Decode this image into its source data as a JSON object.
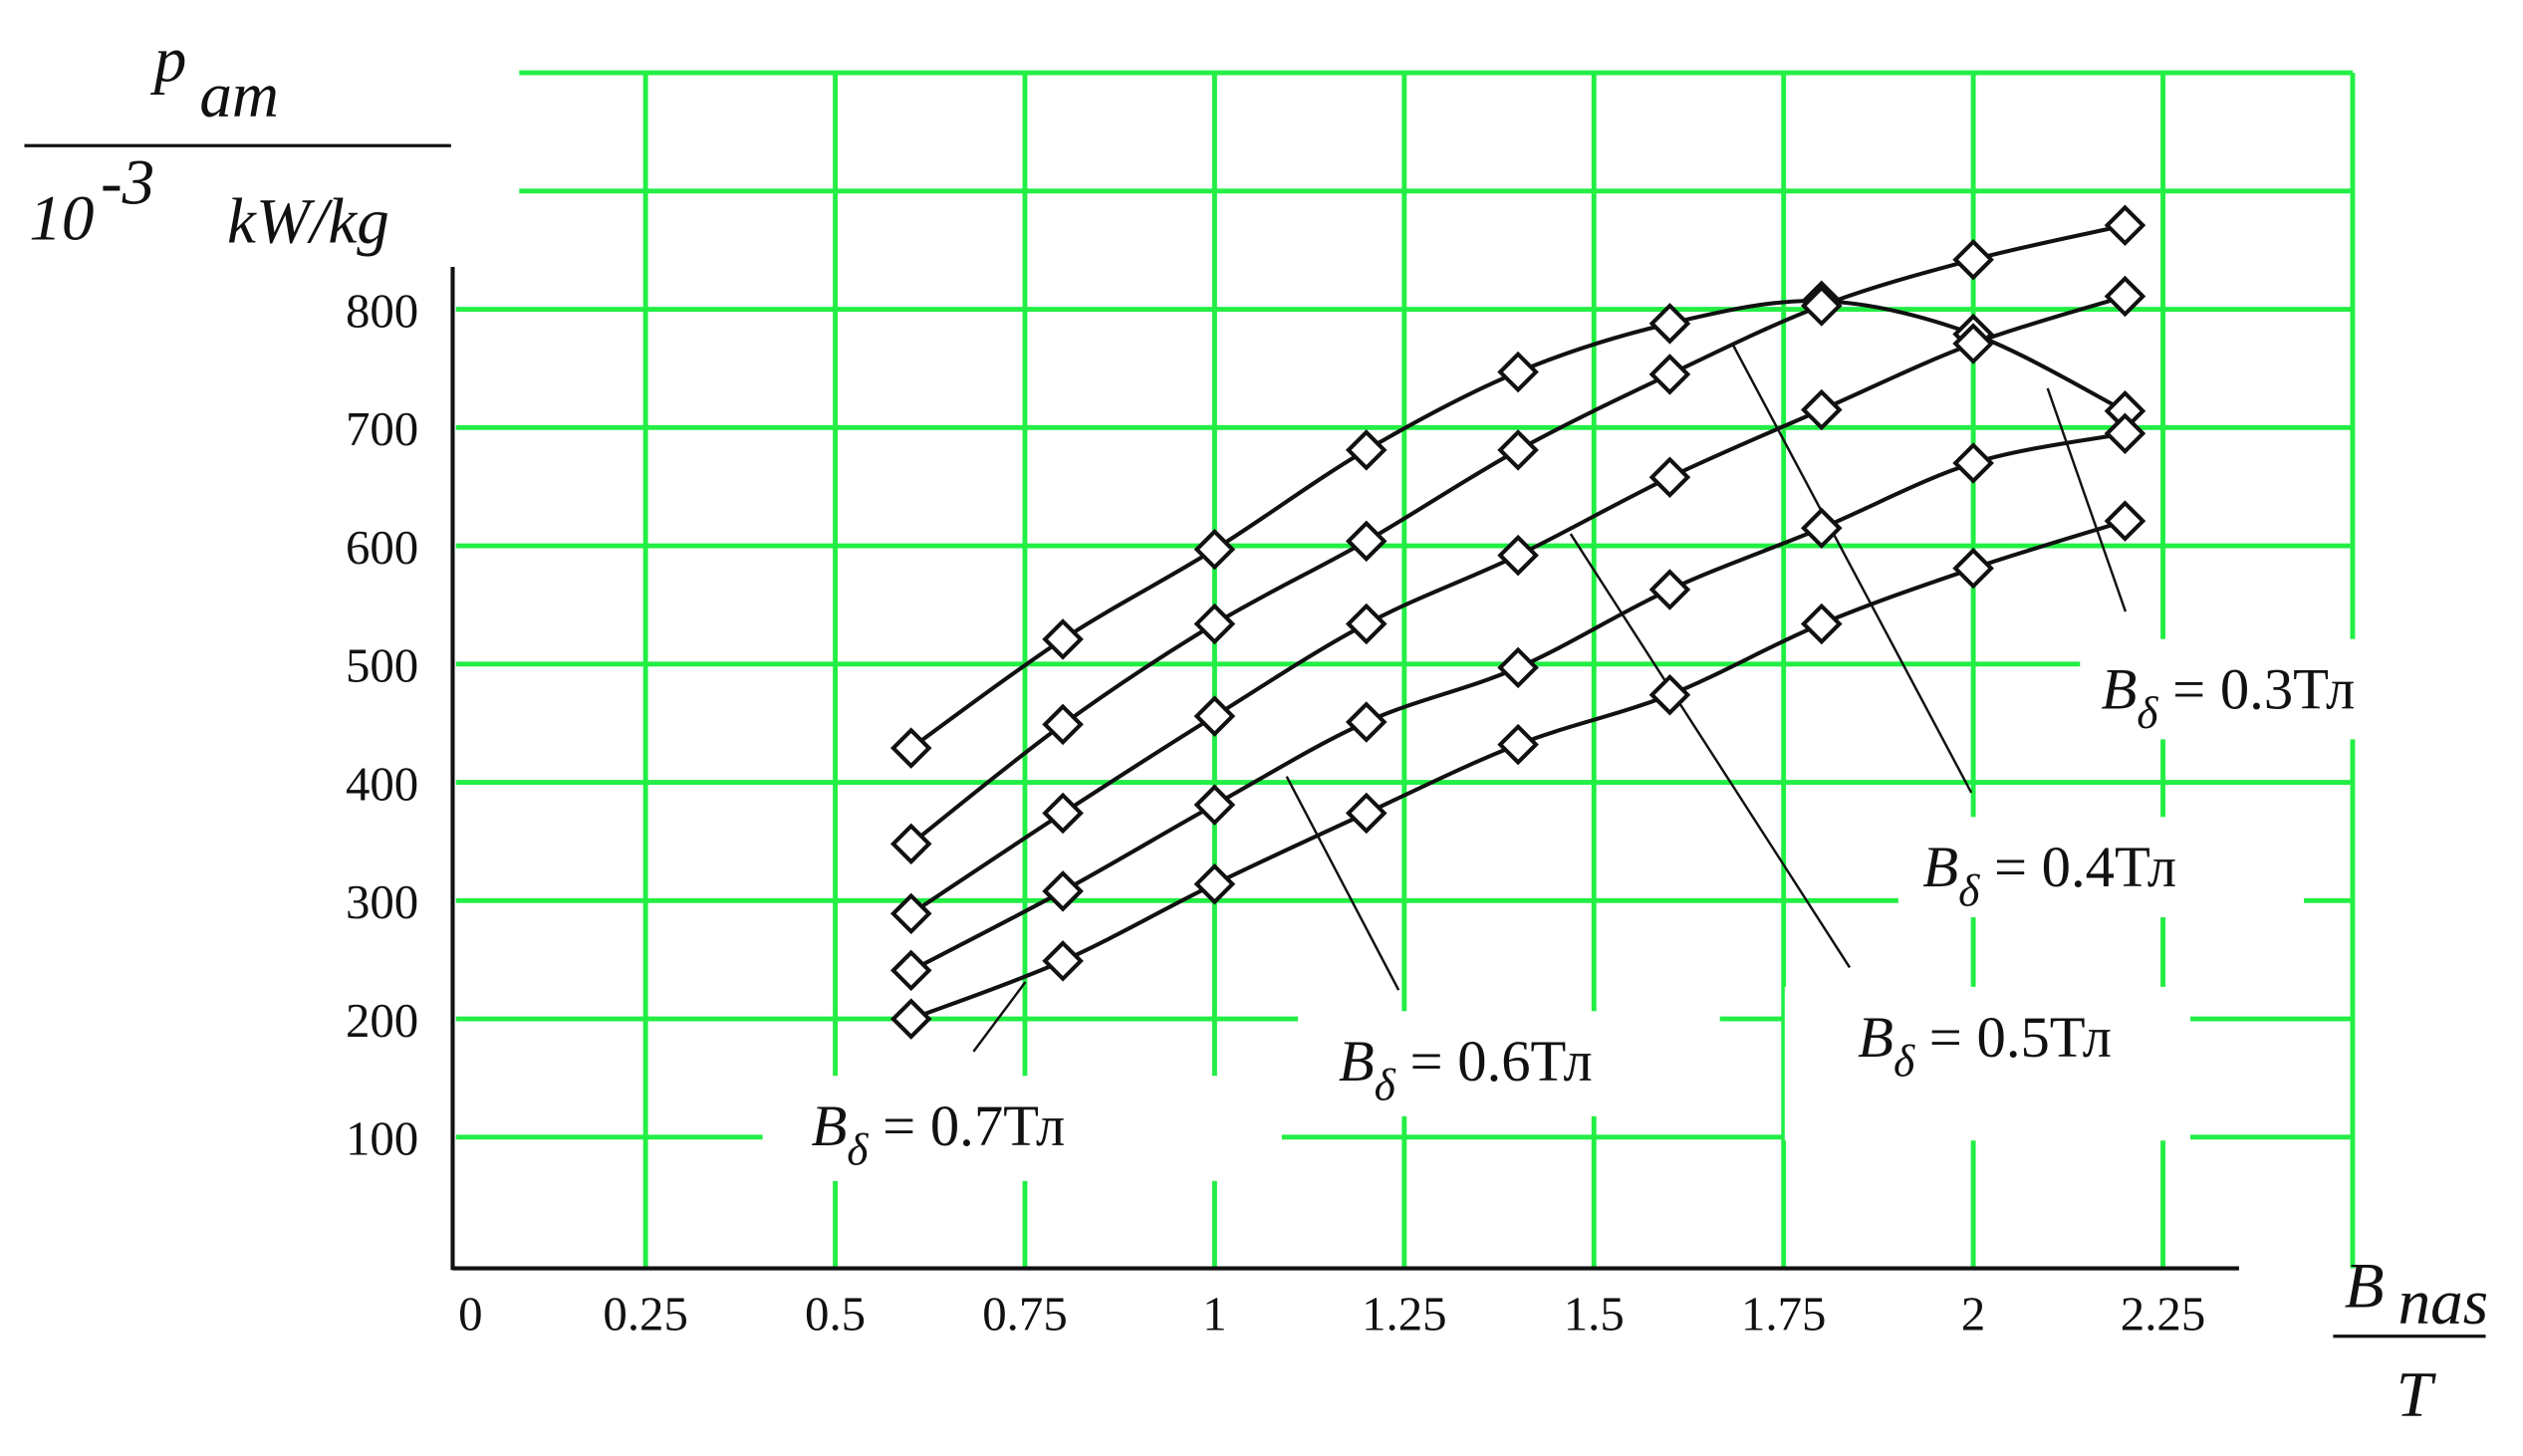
{
  "chart_data": {
    "type": "line",
    "y_label": {
      "numerator": "p",
      "numerator_sub": "am",
      "denominator": "10",
      "denominator_sup": "-3",
      "denominator_unit": "kW/kg"
    },
    "x_label": {
      "numerator": "B",
      "numerator_sub": "nas",
      "denominator": "T"
    },
    "x": [
      0.6,
      0.8,
      1.0,
      1.2,
      1.4,
      1.6,
      1.8,
      2.0,
      2.2
    ],
    "xlim": [
      0,
      2.5
    ],
    "xticks": [
      0,
      0.25,
      0.5,
      0.75,
      1,
      1.25,
      1.5,
      1.75,
      2,
      2.25
    ],
    "ylim": [
      0,
      1000
    ],
    "yticks": [
      100,
      200,
      300,
      400,
      500,
      600,
      700,
      800
    ],
    "grid": true,
    "grid_color": "#22ee44",
    "series": [
      {
        "name": "Bδ = 0.3Тл",
        "color": "#111111",
        "values": [
          429,
          521,
          597,
          681,
          747,
          788,
          807,
          779,
          714
        ]
      },
      {
        "name": "Bδ = 0.4Тл",
        "color": "#111111",
        "values": [
          348,
          449,
          534,
          604,
          681,
          745,
          803,
          842,
          871
        ]
      },
      {
        "name": "Bδ = 0.5Тл",
        "color": "#111111",
        "values": [
          289,
          374,
          456,
          534,
          592,
          658,
          715,
          771,
          811
        ]
      },
      {
        "name": "Bδ = 0.6Тл",
        "color": "#111111",
        "values": [
          241,
          308,
          381,
          451,
          497,
          563,
          615,
          670,
          695
        ]
      },
      {
        "name": "Bδ = 0.7Тл",
        "color": "#111111",
        "values": [
          200,
          249,
          314,
          374,
          432,
          474,
          534,
          581,
          621
        ]
      }
    ]
  }
}
